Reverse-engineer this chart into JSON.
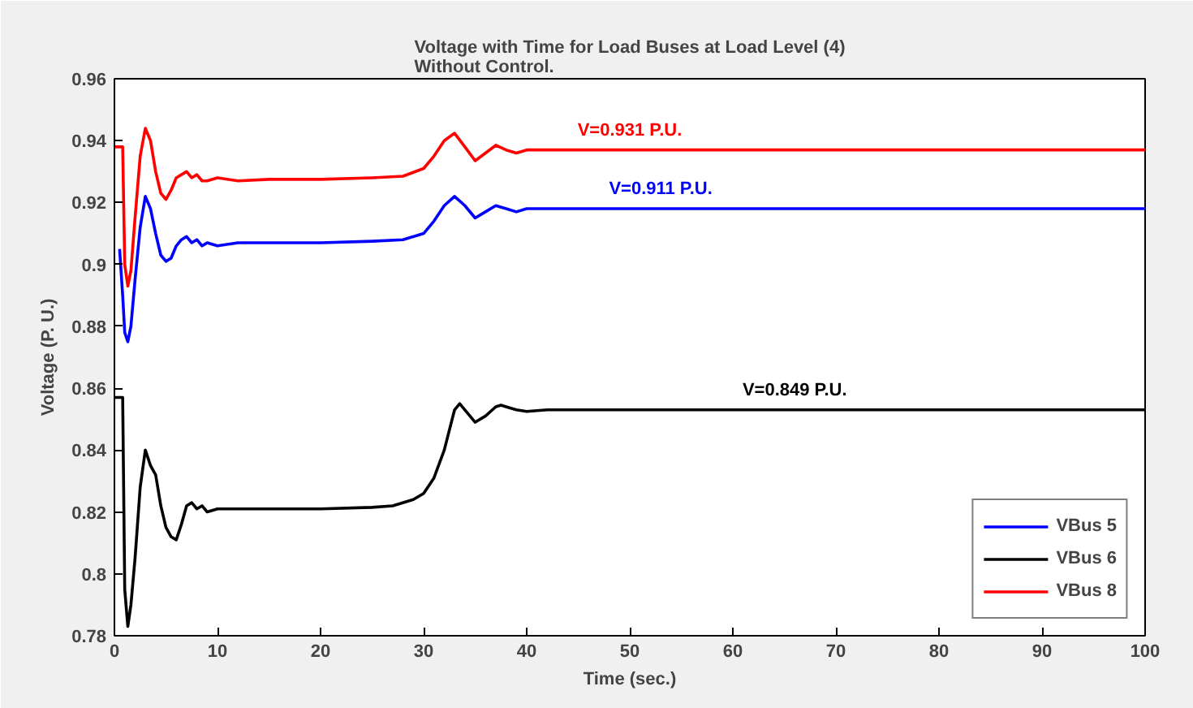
{
  "chart_data": {
    "type": "line",
    "title": "Voltage with Time for Load Buses at Load Level (4)\nWithout Control.",
    "xlabel": "Time (sec.)",
    "ylabel": "Voltage (P. U.)",
    "xlim": [
      0,
      100
    ],
    "ylim": [
      0.78,
      0.96
    ],
    "xticks": [
      0,
      10,
      20,
      30,
      40,
      50,
      60,
      70,
      80,
      90,
      100
    ],
    "yticks": [
      0.78,
      0.8,
      0.82,
      0.84,
      0.86,
      0.88,
      0.9,
      0.92,
      0.94,
      0.96
    ],
    "grid": false,
    "legend": "bottom right",
    "line_style": "solid",
    "marker": "none",
    "series": [
      {
        "name": "VBus 5",
        "color": "#0000ff",
        "x": [
          0.5,
          0.8,
          1.0,
          1.3,
          1.6,
          2.0,
          2.5,
          3.0,
          3.5,
          4.0,
          4.5,
          5.0,
          5.5,
          6.0,
          6.5,
          7.0,
          7.5,
          8.0,
          8.5,
          9.0,
          10,
          12,
          15,
          20,
          25,
          28,
          30,
          31,
          32,
          33,
          34,
          35,
          36,
          37,
          38,
          39,
          40,
          42,
          50,
          60,
          70,
          80,
          90,
          100
        ],
        "values": [
          0.905,
          0.89,
          0.878,
          0.875,
          0.88,
          0.895,
          0.912,
          0.922,
          0.918,
          0.91,
          0.903,
          0.901,
          0.902,
          0.906,
          0.908,
          0.909,
          0.907,
          0.908,
          0.906,
          0.907,
          0.906,
          0.907,
          0.907,
          0.907,
          0.9075,
          0.908,
          0.91,
          0.914,
          0.919,
          0.922,
          0.919,
          0.915,
          0.917,
          0.919,
          0.918,
          0.917,
          0.918,
          0.918,
          0.918,
          0.918,
          0.918,
          0.918,
          0.918,
          0.918
        ]
      },
      {
        "name": "VBus 6",
        "color": "#000000",
        "x": [
          0,
          0.8,
          1.0,
          1.3,
          1.6,
          2.0,
          2.5,
          3.0,
          3.5,
          4.0,
          4.5,
          5.0,
          5.5,
          6.0,
          6.5,
          7.0,
          7.5,
          8.0,
          8.5,
          9.0,
          10,
          12,
          15,
          20,
          25,
          27,
          29,
          30,
          31,
          32,
          33,
          33.5,
          34,
          35,
          36,
          37,
          37.5,
          38,
          39,
          40,
          42,
          50,
          60,
          70,
          80,
          90,
          100
        ],
        "values": [
          0.857,
          0.857,
          0.795,
          0.783,
          0.79,
          0.805,
          0.828,
          0.84,
          0.835,
          0.832,
          0.822,
          0.815,
          0.812,
          0.811,
          0.816,
          0.822,
          0.823,
          0.821,
          0.822,
          0.82,
          0.821,
          0.821,
          0.821,
          0.821,
          0.8215,
          0.822,
          0.824,
          0.826,
          0.831,
          0.84,
          0.853,
          0.855,
          0.853,
          0.849,
          0.851,
          0.854,
          0.8545,
          0.854,
          0.853,
          0.8525,
          0.853,
          0.853,
          0.853,
          0.853,
          0.853,
          0.853,
          0.853
        ]
      },
      {
        "name": "VBus 8",
        "color": "#ff0000",
        "x": [
          0,
          0.8,
          1.0,
          1.3,
          1.6,
          2.0,
          2.5,
          3.0,
          3.5,
          4.0,
          4.5,
          5.0,
          5.5,
          6.0,
          6.5,
          7.0,
          7.5,
          8.0,
          8.5,
          9.0,
          10,
          12,
          15,
          20,
          25,
          28,
          30,
          31,
          32,
          33,
          34,
          35,
          36,
          37,
          38,
          39,
          40,
          42,
          50,
          60,
          70,
          80,
          90,
          100
        ],
        "values": [
          0.938,
          0.938,
          0.9,
          0.893,
          0.898,
          0.915,
          0.935,
          0.944,
          0.94,
          0.93,
          0.923,
          0.921,
          0.924,
          0.928,
          0.929,
          0.93,
          0.928,
          0.929,
          0.927,
          0.927,
          0.928,
          0.927,
          0.9275,
          0.9275,
          0.928,
          0.9285,
          0.931,
          0.935,
          0.94,
          0.9424,
          0.938,
          0.9335,
          0.936,
          0.9385,
          0.937,
          0.936,
          0.937,
          0.937,
          0.937,
          0.937,
          0.937,
          0.937,
          0.937,
          0.937
        ]
      }
    ],
    "annotations": [
      "V=0.911 P.U.",
      "V=0.849 P.U.",
      "V=0.931 P.U."
    ]
  }
}
